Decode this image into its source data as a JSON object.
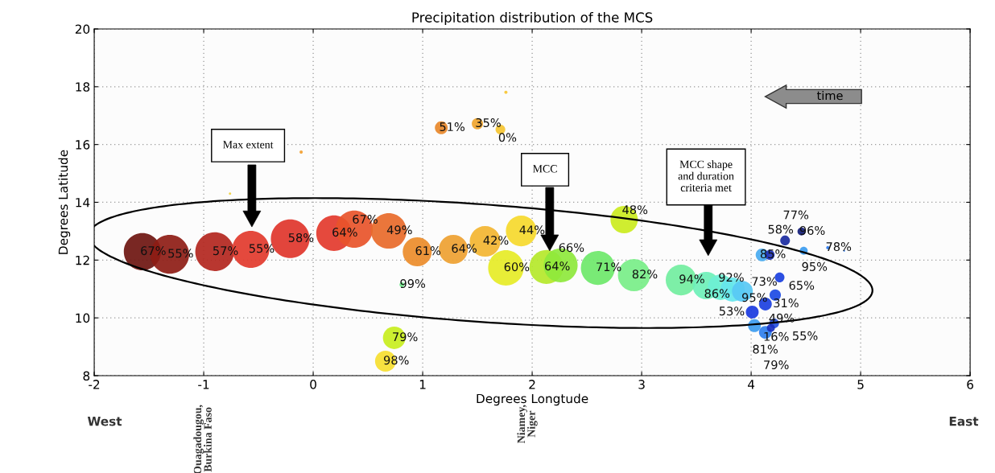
{
  "chart_data": {
    "type": "bubble",
    "title": "Precipitation distribution of the MCS",
    "xlabel": "Degrees Longtude",
    "ylabel": "Degrees Latitude",
    "xlim": [
      -2,
      6
    ],
    "ylim": [
      8,
      20
    ],
    "xticks": [
      -2,
      -1,
      0,
      1,
      2,
      3,
      4,
      5,
      6
    ],
    "yticks": [
      8,
      10,
      12,
      14,
      16,
      18,
      20
    ],
    "grid": true,
    "x": [
      -1.56,
      -1.31,
      -0.9,
      -0.57,
      -0.21,
      0.19,
      0.375,
      0.69,
      0.95,
      0.81,
      1.28,
      1.57,
      1.9,
      1.76,
      2.13,
      2.26,
      2.6,
      2.93,
      2.84,
      3.36,
      3.59,
      3.72,
      3.83,
      3.92,
      4.1,
      4.17,
      4.31,
      4.46,
      4.48,
      4.7,
      4.85,
      4.26,
      4.22,
      4.13,
      4.01,
      4.03,
      4.21,
      4.13,
      4.18,
      1.17,
      1.5,
      1.71,
      1.76,
      -0.11,
      -0.76,
      0.74,
      0.66
    ],
    "values": [
      12.29,
      12.2,
      12.29,
      12.37,
      12.74,
      12.93,
      13.07,
      13.01,
      12.29,
      11.15,
      12.37,
      12.65,
      13.01,
      11.73,
      11.76,
      11.82,
      11.73,
      11.48,
      13.4,
      11.31,
      11.12,
      11.06,
      10.98,
      10.92,
      12.18,
      12.18,
      12.68,
      12.99,
      12.32,
      12.43,
      12.32,
      11.4,
      10.79,
      10.48,
      10.2,
      9.73,
      9.81,
      9.5,
      9.65,
      16.58,
      16.72,
      16.52,
      17.81,
      15.74,
      14.3,
      9.31,
      8.5
    ],
    "sizes": [
      0.92,
      1,
      1,
      0.92,
      1,
      0.84,
      0.92,
      0.84,
      0.56,
      0.016,
      0.56,
      0.63,
      0.63,
      0.84,
      0.77,
      0.77,
      0.77,
      0.69,
      0.5,
      0.63,
      0.5,
      0.44,
      0.39,
      0.29,
      0.11,
      0.063,
      0.063,
      0.043,
      0.043,
      0.007,
      0.002,
      0.063,
      0.085,
      0.11,
      0.11,
      0.11,
      0.063,
      0.11,
      0.043,
      0.11,
      0.085,
      0.063,
      0.007,
      0.007,
      0.004,
      0.34,
      0.29
    ],
    "colors": [
      "#6e1510",
      "#8e1c15",
      "#b3261e",
      "#e23a2c",
      "#e0352b",
      "#e3392d",
      "#e8542a",
      "#e86a2a",
      "#ec8c2a",
      "#6fe88a",
      "#eea131",
      "#f3b531",
      "#f6d92c",
      "#e6ec26",
      "#b5e82a",
      "#8ee83c",
      "#6ee86a",
      "#78ee88",
      "#cbeb1e",
      "#72eea0",
      "#6ef0b8",
      "#6ef0d4",
      "#66e6ec",
      "#58c8f4",
      "#48aaf0",
      "#1c30b8",
      "#1a2aa0",
      "#121c78",
      "#3c9cf0",
      "#2c7aee",
      "#2c7aee",
      "#1a40e0",
      "#1c4ae4",
      "#1c40e0",
      "#1a3ae0",
      "#3c9cf0",
      "#2450e0",
      "#3080ee",
      "#1a30c0",
      "#e8882a",
      "#f0a52e",
      "#f5c431",
      "#f7c531",
      "#f2a030",
      "#f0d040",
      "#c8ee1e",
      "#f6de30"
    ],
    "annotations": [
      "time",
      "Max extent",
      "MCC",
      "MCC shape\nand duration\ncriteria met",
      "West",
      "Ouagadougou,\nBurkina Faso",
      "Niamey,\nNiger",
      "East",
      {
        "text": "67%",
        "x": -1.56,
        "y": 12.29
      },
      {
        "text": "55%",
        "x": -1.31,
        "y": 12.2
      },
      {
        "text": "57%",
        "x": -0.9,
        "y": 12.29
      },
      {
        "text": "55%",
        "x": -0.57,
        "y": 12.37
      },
      {
        "text": "58%",
        "x": -0.21,
        "y": 12.74
      },
      {
        "text": "64%",
        "x": 0.19,
        "y": 12.93
      },
      {
        "text": "67%",
        "x": 0.375,
        "y": 13.07
      },
      {
        "text": "49%",
        "x": 0.69,
        "y": 13.01
      },
      {
        "text": "61%",
        "x": 0.95,
        "y": 12.29
      },
      {
        "text": "99%",
        "x": 0.81,
        "y": 11.15
      },
      {
        "text": "64%",
        "x": 1.28,
        "y": 12.37
      },
      {
        "text": "42%",
        "x": 1.57,
        "y": 12.65
      },
      {
        "text": "44%",
        "x": 1.9,
        "y": 13.01
      },
      {
        "text": "60%",
        "x": 1.76,
        "y": 11.73
      },
      {
        "text": "64%",
        "x": 2.13,
        "y": 11.76
      },
      {
        "text": "66%",
        "x": 2.26,
        "y": 11.82
      },
      {
        "text": "71%",
        "x": 2.6,
        "y": 11.73
      },
      {
        "text": "82%",
        "x": 2.93,
        "y": 11.48
      },
      {
        "text": "48%",
        "x": 2.84,
        "y": 13.4
      },
      {
        "text": "94%",
        "x": 3.36,
        "y": 11.31
      },
      {
        "text": "86%",
        "x": 3.59,
        "y": 11.12
      },
      {
        "text": "92%",
        "x": 3.72,
        "y": 11.06
      },
      {
        "text": "95%",
        "x": 3.83,
        "y": 10.98
      },
      {
        "text": "73%",
        "x": 3.92,
        "y": 10.92
      },
      {
        "text": "85%",
        "x": 4.1,
        "y": 12.18
      },
      {
        "text": "58%",
        "x": 4.17,
        "y": 12.18
      },
      {
        "text": "77%",
        "x": 4.31,
        "y": 12.68
      },
      {
        "text": "96%",
        "x": 4.46,
        "y": 12.99
      },
      {
        "text": "95%",
        "x": 4.48,
        "y": 12.32
      },
      {
        "text": "78%",
        "x": 4.7,
        "y": 12.43
      },
      {
        "text": "65%",
        "x": 4.26,
        "y": 11.4
      },
      {
        "text": "31%",
        "x": 4.22,
        "y": 10.79
      },
      {
        "text": "16%",
        "x": 4.13,
        "y": 10.48
      },
      {
        "text": "53%",
        "x": 4.01,
        "y": 10.2
      },
      {
        "text": "81%",
        "x": 4.03,
        "y": 9.73
      },
      {
        "text": "55%",
        "x": 4.21,
        "y": 9.81
      },
      {
        "text": "79%",
        "x": 4.13,
        "y": 9.5
      },
      {
        "text": "49%",
        "x": 4.18,
        "y": 9.65
      },
      {
        "text": "51%",
        "x": 1.17,
        "y": 16.58
      },
      {
        "text": "35%",
        "x": 1.5,
        "y": 16.72
      },
      {
        "text": "0%",
        "x": 1.71,
        "y": 16.52
      },
      {
        "text": "79%",
        "x": 0.74,
        "y": 9.31
      },
      {
        "text": "98%",
        "x": 0.66,
        "y": 8.5
      }
    ]
  }
}
